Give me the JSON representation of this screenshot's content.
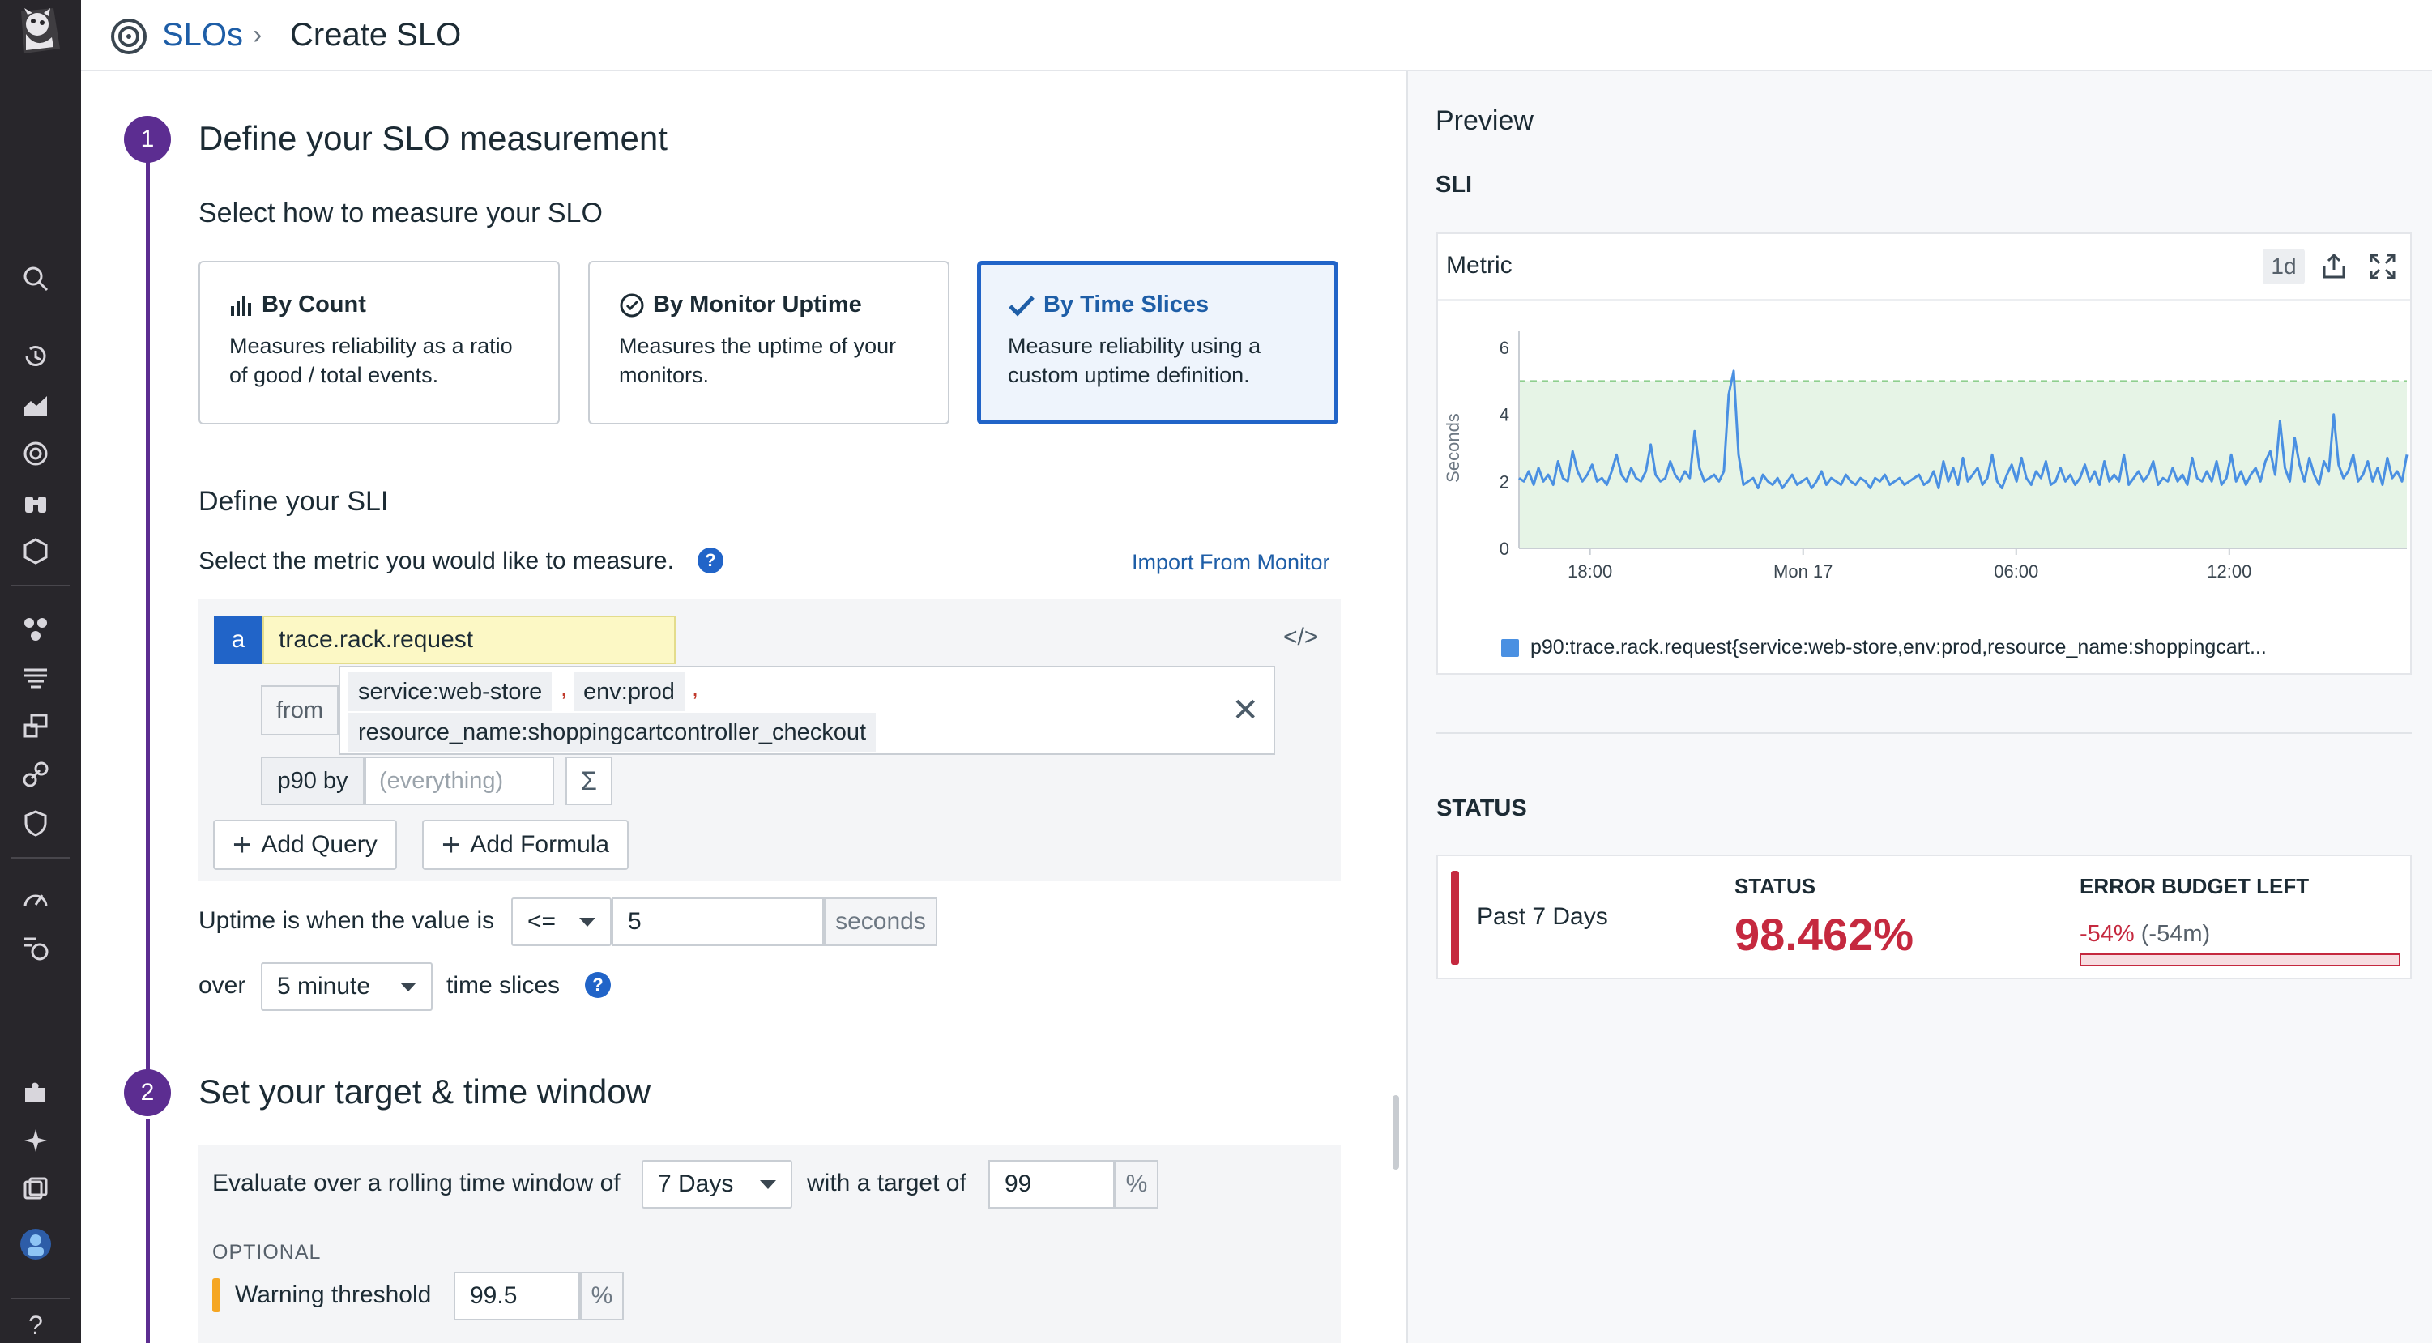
{
  "header": {
    "breadcrumb": "SLOs",
    "title": "Create SLO"
  },
  "step1": {
    "number": "1",
    "title": "Define your SLO measurement",
    "subtitle": "Select how to measure your SLO",
    "cards": [
      {
        "title": "By Count",
        "desc": "Measures reliability as a ratio\nof good / total events.",
        "icon": "bar-chart-icon",
        "selected": false
      },
      {
        "title": "By Monitor Uptime",
        "desc": "Measures the uptime of your\nmonitors.",
        "icon": "monitor-uptime-icon",
        "selected": false
      },
      {
        "title": "By Time Slices",
        "desc": "Measure reliability using a\ncustom uptime definition.",
        "icon": "check-icon",
        "selected": true
      }
    ],
    "sli_title": "Define your SLI",
    "sli_prompt": "Select the metric you would like to measure.",
    "import_link": "Import From Monitor",
    "query": {
      "label": "a",
      "metric": "trace.rack.request",
      "from_label": "from",
      "tags": [
        "service:web-store",
        "env:prod",
        "resource_name:shoppingcartcontroller_checkout"
      ],
      "separator": ",",
      "aggregation": "p90 by",
      "by_placeholder": "(everything)",
      "sigma": "Σ"
    },
    "add_query": "Add Query",
    "add_formula": "Add Formula",
    "uptime_label": "Uptime is when the value is",
    "comparator": "<=",
    "threshold_value": "5",
    "threshold_unit": "seconds",
    "over_label": "over",
    "slice_value": "5 minute",
    "slices_label": "time slices"
  },
  "step2": {
    "number": "2",
    "title": "Set your target & time window",
    "window_label": "Evaluate over a rolling time window of",
    "window_value": "7 Days",
    "target_label": "with a target of",
    "target_value": "99",
    "percent": "%",
    "optional": "OPTIONAL",
    "warning_label": "Warning threshold",
    "warning_value": "99.5"
  },
  "preview": {
    "title": "Preview",
    "sli_header": "SLI",
    "widget_title": "Metric",
    "timeframe": "1d",
    "legend": "p90:trace.rack.request{service:web-store,env:prod,resource_name:shoppingcart...",
    "status_header": "STATUS",
    "status": {
      "period": "Past 7 Days",
      "label": "STATUS",
      "value": "98.462%",
      "budget_label": "ERROR BUDGET LEFT",
      "budget_pct": "-54%",
      "budget_time": "(-54m)"
    },
    "colors": {
      "accent": "#2164c8",
      "step": "#5c2d91",
      "bad": "#c5293f",
      "line": "#4a90e2"
    }
  },
  "chart_data": {
    "type": "line",
    "ylabel": "Seconds",
    "ylim": [
      0,
      6
    ],
    "yticks": [
      "0",
      "2",
      "4",
      "6"
    ],
    "xticks": [
      "18:00",
      "Mon 17",
      "06:00",
      "12:00"
    ],
    "threshold": 5,
    "series": [
      {
        "values": [
          2.1,
          2.0,
          2.3,
          1.9,
          2.4,
          2.0,
          2.2,
          1.9,
          2.6,
          2.1,
          2.0,
          2.9,
          2.3,
          2.0,
          2.2,
          2.5,
          2.0,
          2.1,
          1.9,
          2.3,
          2.8,
          2.2,
          2.0,
          2.4,
          2.1,
          2.0,
          2.3,
          3.1,
          2.2,
          2.0,
          2.1,
          2.6,
          2.2,
          2.0,
          2.3,
          2.1,
          3.5,
          2.4,
          2.0,
          2.1,
          2.2,
          2.0,
          2.3,
          4.6,
          5.3,
          2.8,
          1.9,
          2.0,
          2.1,
          1.8,
          2.2,
          2.0,
          1.9,
          2.1,
          1.8,
          2.0,
          2.2,
          1.9,
          2.0,
          2.1,
          1.8,
          2.0,
          2.3,
          1.9,
          2.1,
          2.0,
          1.9,
          2.2,
          2.0,
          1.9,
          2.1,
          2.0,
          1.8,
          2.1,
          2.0,
          2.2,
          1.9,
          2.0,
          2.1,
          1.9,
          2.0,
          2.1,
          2.2,
          1.9,
          2.0,
          2.3,
          1.8,
          2.6,
          2.0,
          2.4,
          1.9,
          2.7,
          2.0,
          2.2,
          2.4,
          1.9,
          2.1,
          2.8,
          2.0,
          1.8,
          2.2,
          2.5,
          2.0,
          2.7,
          2.1,
          1.9,
          2.3,
          2.1,
          2.6,
          1.9,
          2.0,
          2.4,
          2.0,
          2.2,
          1.9,
          2.1,
          2.5,
          2.0,
          2.3,
          1.9,
          2.6,
          2.0,
          2.2,
          2.0,
          2.8,
          1.9,
          2.1,
          2.3,
          2.0,
          2.2,
          2.6,
          1.9,
          2.1,
          2.0,
          2.4,
          2.0,
          2.2,
          1.9,
          2.7,
          2.1,
          2.0,
          2.3,
          2.0,
          2.6,
          1.9,
          2.1,
          2.8,
          2.0,
          2.3,
          1.9,
          2.2,
          2.4,
          2.0,
          2.6,
          2.9,
          2.2,
          3.8,
          2.4,
          2.0,
          3.3,
          2.5,
          2.0,
          2.7,
          2.2,
          1.9,
          2.6,
          2.3,
          4.0,
          2.5,
          2.1,
          2.3,
          2.8,
          2.0,
          2.2,
          2.6,
          2.0,
          2.4,
          1.9,
          2.7,
          2.1,
          2.3,
          2.0,
          2.8
        ]
      }
    ]
  }
}
